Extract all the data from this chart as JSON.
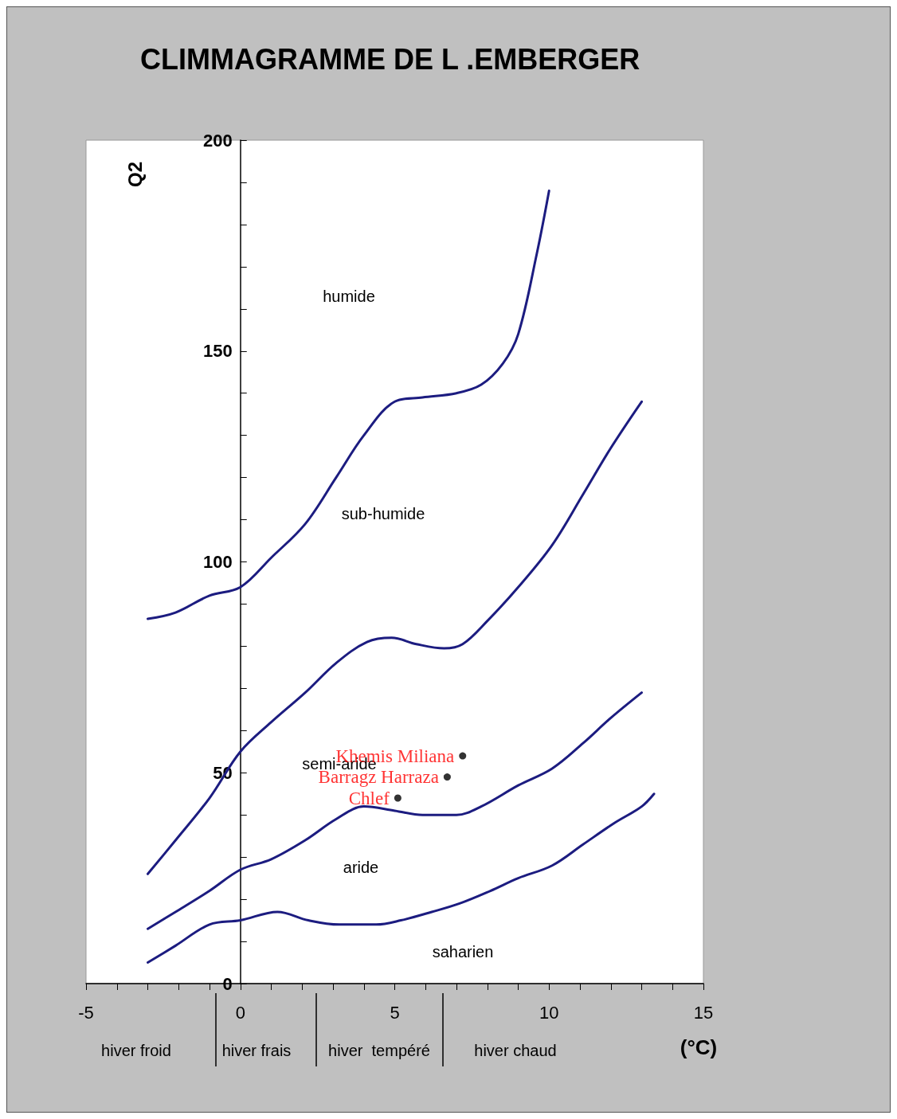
{
  "chart_data": {
    "type": "line",
    "title": "CLIMMAGRAMME DE L .EMBERGER",
    "ylabel": "Q2",
    "xlabel": "(°C)",
    "xlim": [
      -5,
      15
    ],
    "ylim": [
      0,
      200
    ],
    "xticks": [
      -5,
      {
        "value": -4,
        "label": null
      },
      {
        "value": -3,
        "label": null
      },
      {
        "value": -2,
        "label": null
      },
      {
        "value": -1,
        "label": null
      },
      0,
      {
        "value": 1,
        "label": null
      },
      {
        "value": 2,
        "label": null
      },
      {
        "value": 3,
        "label": null
      },
      {
        "value": 4,
        "label": null
      },
      5,
      {
        "value": 6,
        "label": null
      },
      {
        "value": 7,
        "label": null
      },
      {
        "value": 8,
        "label": null
      },
      {
        "value": 9,
        "label": null
      },
      10,
      {
        "value": 11,
        "label": null
      },
      {
        "value": 12,
        "label": null
      },
      {
        "value": 13,
        "label": null
      },
      {
        "value": 14,
        "label": null
      },
      15
    ],
    "yticks": [
      0,
      {
        "value": 10,
        "label": null
      },
      {
        "value": 20,
        "label": null
      },
      {
        "value": 30,
        "label": null
      },
      {
        "value": 40,
        "label": null
      },
      50,
      {
        "value": 60,
        "label": null
      },
      {
        "value": 70,
        "label": null
      },
      {
        "value": 80,
        "label": null
      },
      {
        "value": 90,
        "label": null
      },
      100,
      {
        "value": 110,
        "label": null
      },
      {
        "value": 120,
        "label": null
      },
      {
        "value": 130,
        "label": null
      },
      {
        "value": 140,
        "label": null
      },
      150,
      {
        "value": 160,
        "label": null
      },
      {
        "value": 170,
        "label": null
      },
      {
        "value": 180,
        "label": null
      },
      {
        "value": 190,
        "label": null
      },
      200
    ],
    "grid": false,
    "legend": false,
    "series": [
      {
        "color": "#1c1c80",
        "marker": "none",
        "x": [
          -3,
          -2.1,
          -1,
          0,
          1,
          2.1,
          3.1,
          4,
          5,
          5.9,
          7,
          7.8,
          8.5,
          9,
          9.6,
          10
        ],
        "values": [
          86.5,
          88,
          92,
          94,
          101,
          109,
          120,
          130,
          138,
          139,
          140,
          142,
          147,
          154,
          173,
          188
        ]
      },
      {
        "color": "#1c1c80",
        "marker": "none",
        "x": [
          -3,
          -2.1,
          -1,
          0,
          1,
          2.1,
          3.1,
          4.1,
          4.9,
          5.7,
          6.6,
          7.2,
          8,
          9,
          10.1,
          11.1,
          12,
          13
        ],
        "values": [
          26,
          34,
          44,
          55,
          62,
          69,
          76,
          81,
          82,
          80.5,
          79.5,
          80.5,
          86,
          94,
          104,
          116,
          127,
          138
        ]
      },
      {
        "color": "#1c1c80",
        "marker": "none",
        "x": [
          -3,
          -2.1,
          -1,
          0,
          1,
          2.1,
          3.1,
          4,
          5,
          5.9,
          7,
          7.8,
          9,
          10.1,
          11.1,
          12,
          13
        ],
        "values": [
          13,
          17,
          22,
          27,
          29.5,
          34,
          39,
          42,
          41,
          40,
          40,
          42,
          47,
          51,
          57,
          63,
          69
        ]
      },
      {
        "color": "#1c1c80",
        "marker": "none",
        "x": [
          -3,
          -2.1,
          -1,
          0,
          1.2,
          2.2,
          3.2,
          4.4,
          5.2,
          6.2,
          7.1,
          8.1,
          9,
          10.1,
          11.1,
          12.1,
          13,
          13.4
        ],
        "values": [
          5,
          9,
          14,
          15,
          17,
          15,
          14,
          14,
          15,
          17,
          19,
          22,
          25,
          28,
          33,
          38,
          42,
          45
        ]
      },
      {
        "type": "scatter",
        "name": "Khemis Miliana",
        "color": "#000000",
        "marker": "circle",
        "x": [
          7.2
        ],
        "values": [
          54
        ]
      },
      {
        "type": "scatter",
        "name": "Barragz Harraza",
        "color": "#000000",
        "marker": "circle",
        "x": [
          6.7
        ],
        "values": [
          49
        ]
      },
      {
        "type": "scatter",
        "name": "Chlef",
        "color": "#000000",
        "marker": "circle",
        "x": [
          5.1
        ],
        "values": [
          44
        ]
      }
    ],
    "annotations": [
      "humide",
      "sub-humide",
      "semi-aride",
      "aride",
      "saharien",
      "hiver froid",
      "hiver frais",
      "hiver  tempéré",
      "hiver chaud"
    ]
  }
}
